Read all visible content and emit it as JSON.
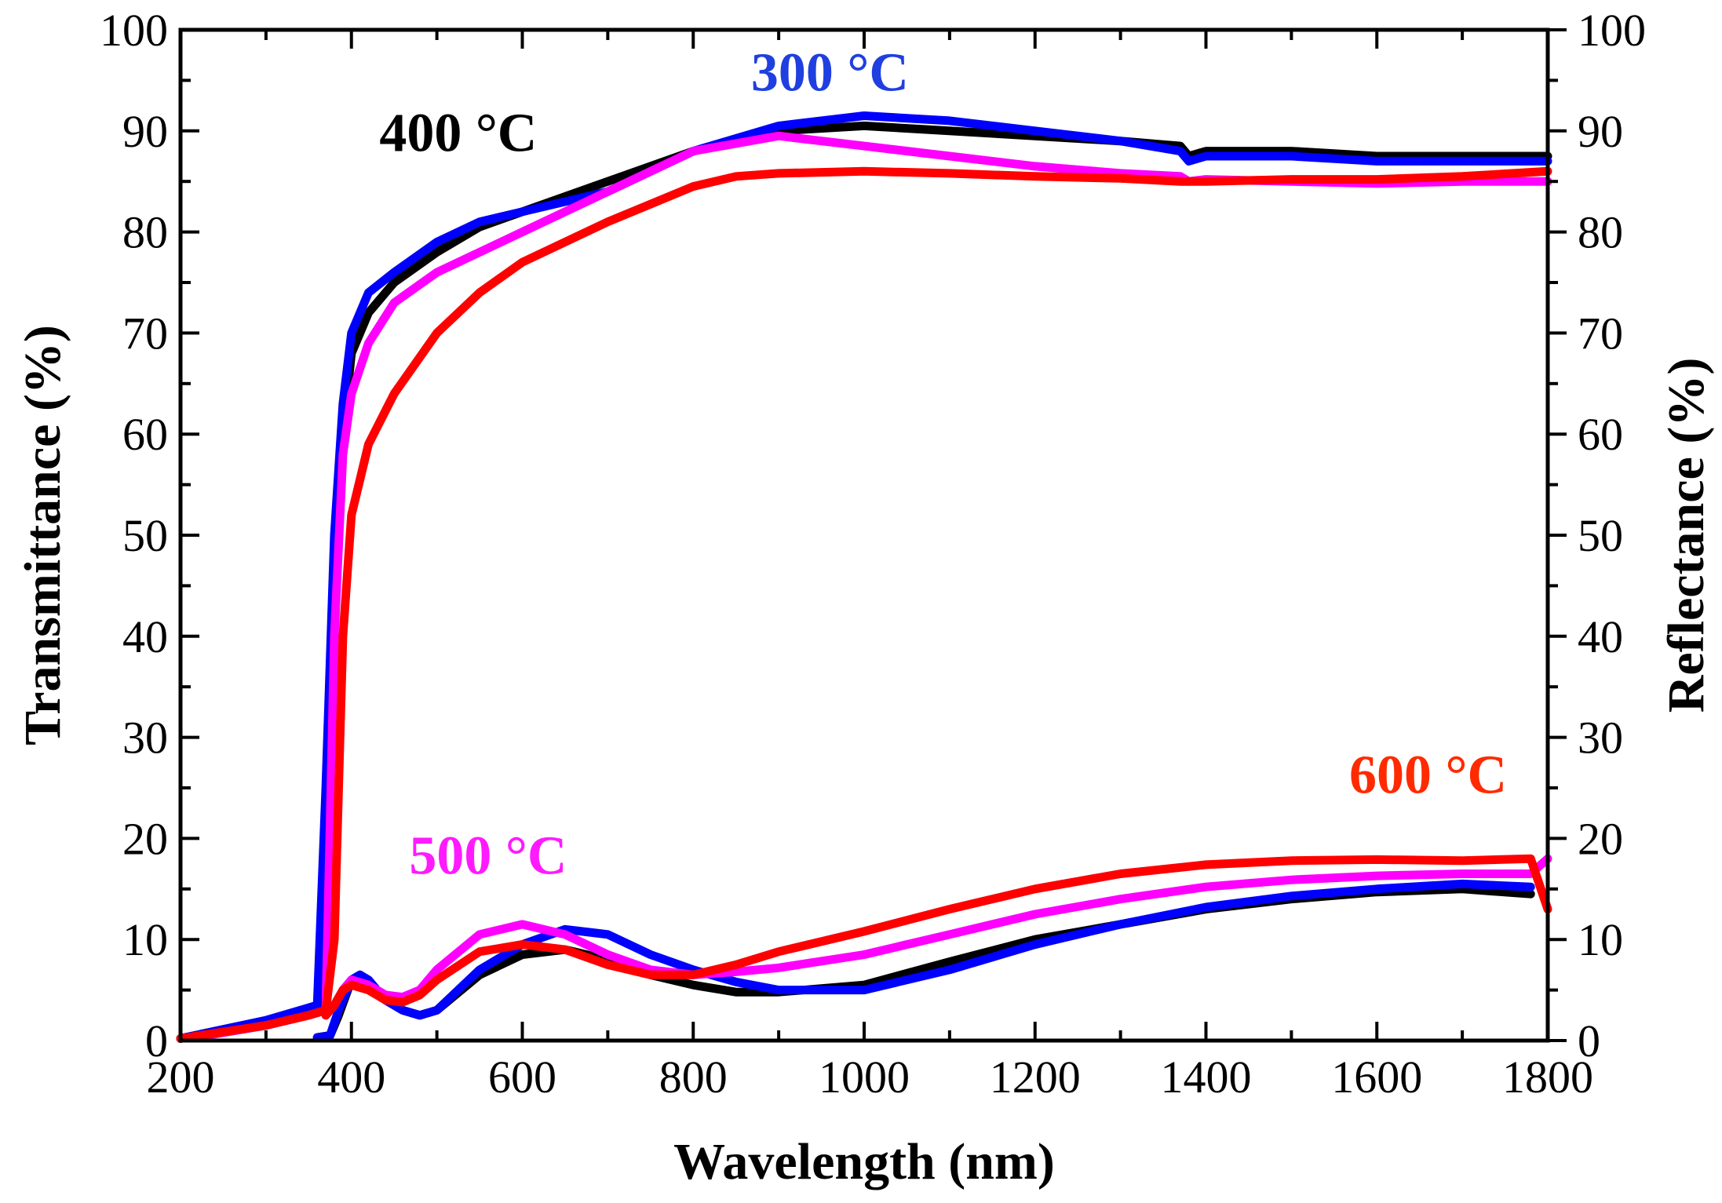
{
  "chart_data": {
    "type": "line",
    "title": "",
    "xlabel": "Wavelength (nm)",
    "ylabel_left": "Transmittance (%)",
    "ylabel_right": "Reflectance (%)",
    "xlim": [
      200,
      1800
    ],
    "ylim_left": [
      0,
      100
    ],
    "ylim_right": [
      0,
      100
    ],
    "x_ticks": [
      200,
      400,
      600,
      800,
      1000,
      1200,
      1400,
      1600,
      1800
    ],
    "y_ticks_left": [
      0,
      10,
      20,
      30,
      40,
      50,
      60,
      70,
      80,
      90,
      100
    ],
    "y_ticks_right": [
      0,
      10,
      20,
      30,
      40,
      50,
      60,
      70,
      80,
      90,
      100
    ],
    "x_tick_labels": [
      "200",
      "400",
      "600",
      "800",
      "1000",
      "1200",
      "1400",
      "1600",
      "1800"
    ],
    "y_tick_labels_left": [
      "0",
      "10",
      "20",
      "30",
      "40",
      "50",
      "60",
      "70",
      "80",
      "90",
      "100"
    ],
    "y_tick_labels_right": [
      "0",
      "10",
      "20",
      "30",
      "40",
      "50",
      "60",
      "70",
      "80",
      "90",
      "100"
    ],
    "grid": false,
    "series": [
      {
        "name": "400 °C transmittance",
        "label": "400 °C",
        "color": "#000000",
        "axis": "left",
        "x": [
          200,
          300,
          340,
          360,
          370,
          380,
          390,
          400,
          420,
          450,
          500,
          550,
          600,
          700,
          800,
          900,
          1000,
          1100,
          1200,
          1300,
          1370,
          1380,
          1400,
          1500,
          1600,
          1700,
          1800
        ],
        "y": [
          0.2,
          2,
          2.8,
          3.2,
          20,
          45,
          60,
          68,
          72,
          75,
          78,
          80.5,
          82,
          85,
          88,
          90,
          90.5,
          90,
          89.5,
          89,
          88.5,
          87.5,
          88,
          88,
          87.5,
          87.5,
          87.5
        ]
      },
      {
        "name": "300 °C transmittance",
        "label": "300 °C",
        "color": "#0000ff",
        "axis": "left",
        "x": [
          200,
          300,
          340,
          360,
          370,
          380,
          390,
          400,
          420,
          450,
          500,
          550,
          600,
          700,
          800,
          900,
          1000,
          1100,
          1200,
          1300,
          1370,
          1380,
          1400,
          1500,
          1600,
          1700,
          1800
        ],
        "y": [
          0.2,
          2,
          3,
          3.5,
          25,
          50,
          63,
          70,
          74,
          76,
          79,
          81,
          82,
          84,
          88,
          90.5,
          91.5,
          91,
          90,
          89,
          88,
          87,
          87.5,
          87.5,
          87,
          87,
          87
        ]
      },
      {
        "name": "500 °C transmittance",
        "label": "500 °C",
        "color": "#ff00ff",
        "axis": "left",
        "x": [
          230,
          300,
          350,
          370,
          380,
          390,
          400,
          420,
          450,
          500,
          550,
          600,
          700,
          800,
          900,
          1000,
          1100,
          1200,
          1300,
          1370,
          1380,
          1400,
          1500,
          1600,
          1700,
          1800
        ],
        "y": [
          0.5,
          1.5,
          2.5,
          3,
          40,
          58,
          64,
          69,
          73,
          76,
          78,
          80,
          84,
          88,
          89.5,
          88.5,
          87.5,
          86.5,
          85.8,
          85.5,
          85,
          85.2,
          85,
          84.8,
          85,
          85
        ]
      },
      {
        "name": "600 °C transmittance",
        "label": "600 °C",
        "color": "#ff0000",
        "axis": "left",
        "x": [
          200,
          300,
          350,
          370,
          380,
          390,
          400,
          420,
          450,
          500,
          550,
          600,
          700,
          800,
          850,
          900,
          1000,
          1100,
          1200,
          1300,
          1370,
          1400,
          1500,
          1600,
          1700,
          1800
        ],
        "y": [
          0.2,
          1.5,
          2.5,
          3,
          10,
          40,
          52,
          59,
          64,
          70,
          74,
          77,
          81,
          84.5,
          85.5,
          85.8,
          86,
          85.8,
          85.5,
          85.3,
          85,
          85,
          85.2,
          85.2,
          85.5,
          86
        ]
      },
      {
        "name": "400 °C reflectance",
        "label": "400 °C",
        "color": "#000000",
        "axis": "right",
        "x": [
          360,
          375,
          385,
          400,
          410,
          420,
          440,
          460,
          480,
          500,
          550,
          600,
          650,
          700,
          750,
          800,
          850,
          900,
          1000,
          1100,
          1200,
          1300,
          1400,
          1500,
          1600,
          1700,
          1780
        ],
        "y": [
          0.3,
          0.5,
          2.5,
          6,
          6.5,
          5.5,
          4,
          3,
          2.5,
          3,
          6.5,
          8.5,
          9,
          8,
          6.5,
          5.5,
          4.8,
          4.8,
          5.5,
          7.8,
          10,
          11.5,
          13,
          14,
          14.7,
          15,
          14.5
        ]
      },
      {
        "name": "300 °C reflectance",
        "label": "300 °C",
        "color": "#0000ff",
        "axis": "right",
        "x": [
          360,
          375,
          385,
          400,
          410,
          420,
          440,
          460,
          480,
          500,
          550,
          600,
          650,
          700,
          750,
          800,
          850,
          900,
          1000,
          1100,
          1200,
          1300,
          1400,
          1500,
          1600,
          1700,
          1780
        ],
        "y": [
          0.3,
          0.5,
          3,
          6,
          6.5,
          6,
          4,
          3,
          2.5,
          3,
          7,
          9.5,
          11,
          10.5,
          8.5,
          7,
          5.8,
          5,
          5,
          7,
          9.5,
          11.5,
          13.2,
          14.3,
          15,
          15.5,
          15.2
        ]
      },
      {
        "name": "500 °C reflectance",
        "label": "500 °C",
        "color": "#ff00ff",
        "axis": "right",
        "x": [
          370,
          380,
          390,
          400,
          420,
          440,
          460,
          480,
          500,
          550,
          600,
          650,
          700,
          750,
          800,
          850,
          900,
          1000,
          1100,
          1200,
          1300,
          1400,
          1500,
          1600,
          1700,
          1780,
          1800
        ],
        "y": [
          2.5,
          3.5,
          5,
          6,
          5.5,
          4.5,
          4.3,
          5,
          7,
          10.5,
          11.5,
          10.5,
          8.5,
          7,
          6.5,
          6.8,
          7.2,
          8.5,
          10.5,
          12.5,
          14,
          15.2,
          15.9,
          16.3,
          16.5,
          16.5,
          18
        ]
      },
      {
        "name": "600 °C reflectance",
        "label": "600 °C",
        "color": "#ff0000",
        "axis": "right",
        "x": [
          370,
          380,
          390,
          400,
          420,
          440,
          460,
          480,
          500,
          550,
          600,
          650,
          700,
          750,
          800,
          850,
          900,
          1000,
          1100,
          1200,
          1300,
          1400,
          1500,
          1600,
          1700,
          1780,
          1800
        ],
        "y": [
          2.5,
          3.5,
          5,
          5.5,
          5,
          4,
          3.8,
          4.5,
          6,
          8.8,
          9.5,
          9,
          7.5,
          6.5,
          6.5,
          7.5,
          8.8,
          10.8,
          13,
          15,
          16.5,
          17.4,
          17.8,
          17.9,
          17.8,
          18,
          13
        ]
      }
    ],
    "annotations": [
      {
        "text": "300 °C",
        "color": "#1f3fe0",
        "x": 960,
        "y": 94
      },
      {
        "text": "400 °C",
        "color": "#000000",
        "x": 525,
        "y": 88
      },
      {
        "text": "500 °C",
        "color": "#ff1aff",
        "x": 560,
        "y": 16.5
      },
      {
        "text": "600 °C",
        "color": "#ff2a00",
        "x": 1660,
        "y": 24.5
      }
    ]
  }
}
